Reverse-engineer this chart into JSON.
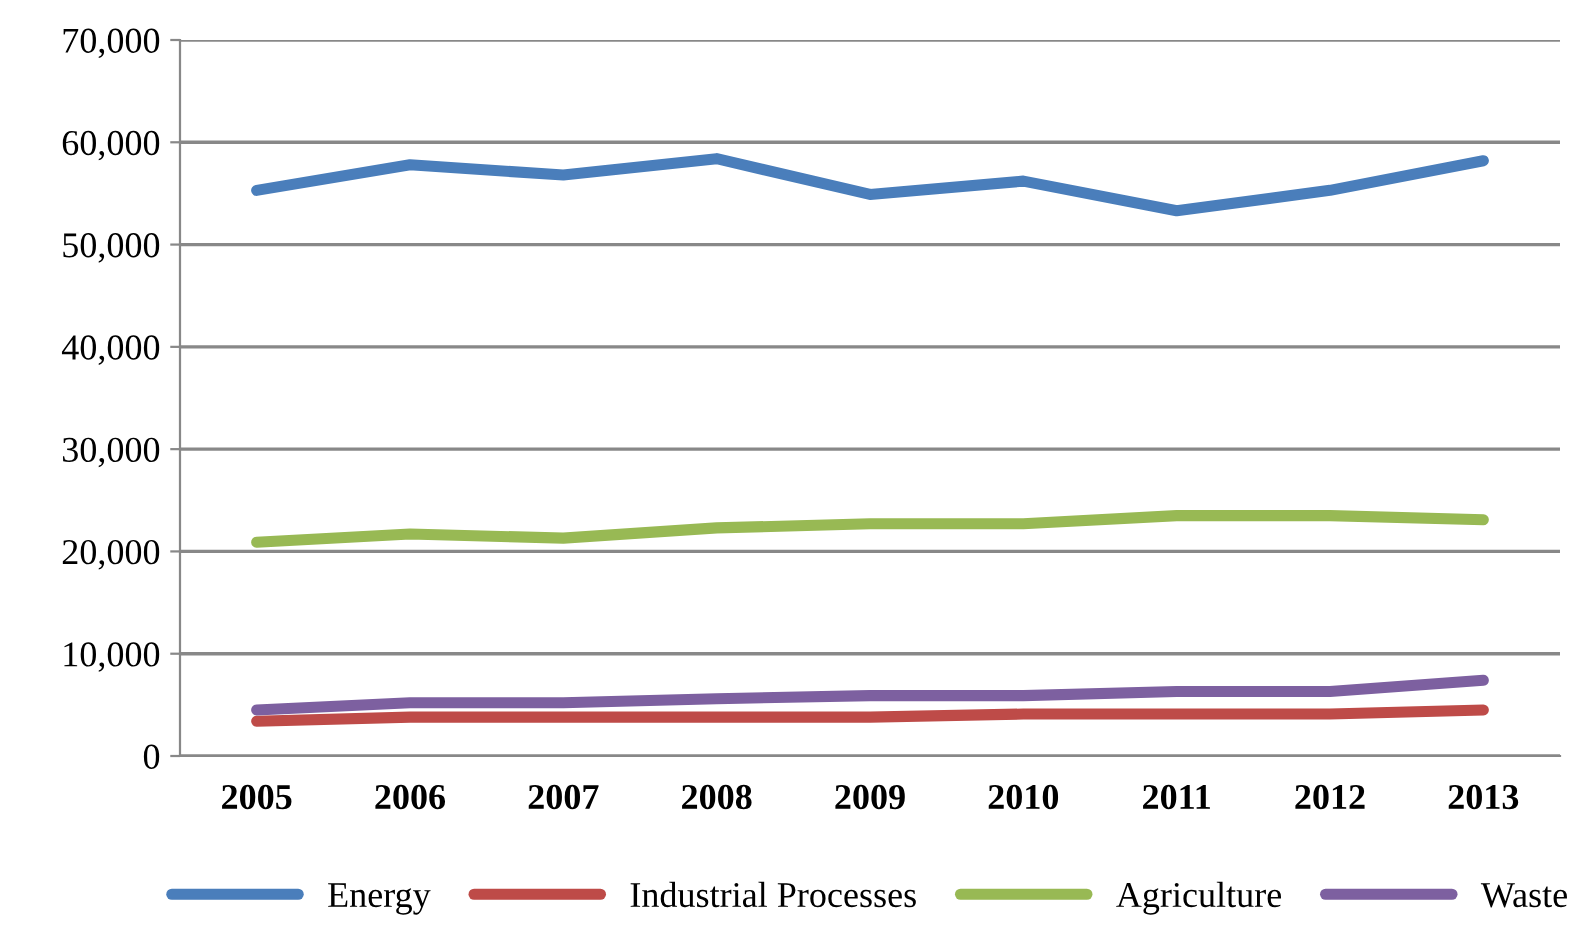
{
  "chart_data": {
    "type": "line",
    "categories": [
      "2005",
      "2006",
      "2007",
      "2008",
      "2009",
      "2010",
      "2011",
      "2012",
      "2013"
    ],
    "series": [
      {
        "name": "Energy",
        "color": "#4a7ebb",
        "values": [
          55300,
          57800,
          56800,
          58400,
          54900,
          56200,
          53300,
          55300,
          58200
        ]
      },
      {
        "name": "Industrial Processes",
        "color": "#be4b48",
        "values": [
          3400,
          3800,
          3800,
          3800,
          3800,
          4100,
          4100,
          4100,
          4500
        ]
      },
      {
        "name": "Agriculture",
        "color": "#98b954",
        "values": [
          20900,
          21700,
          21300,
          22300,
          22700,
          22700,
          23500,
          23500,
          23100
        ]
      },
      {
        "name": "Waste",
        "color": "#7d60a0",
        "values": [
          4500,
          5200,
          5200,
          5600,
          5900,
          5900,
          6300,
          6300,
          7400
        ]
      }
    ],
    "ylim": [
      0,
      70000
    ],
    "yticks": [
      {
        "value": 0,
        "label": "0"
      },
      {
        "value": 10000,
        "label": "10,000"
      },
      {
        "value": 20000,
        "label": "20,000"
      },
      {
        "value": 30000,
        "label": "30,000"
      },
      {
        "value": 40000,
        "label": "40,000"
      },
      {
        "value": 50000,
        "label": "50,000"
      },
      {
        "value": 60000,
        "label": "60,000"
      },
      {
        "value": 70000,
        "label": "70,000"
      }
    ],
    "grid": "y",
    "legend": "bottom",
    "marker": "none",
    "line_style": "solid"
  }
}
